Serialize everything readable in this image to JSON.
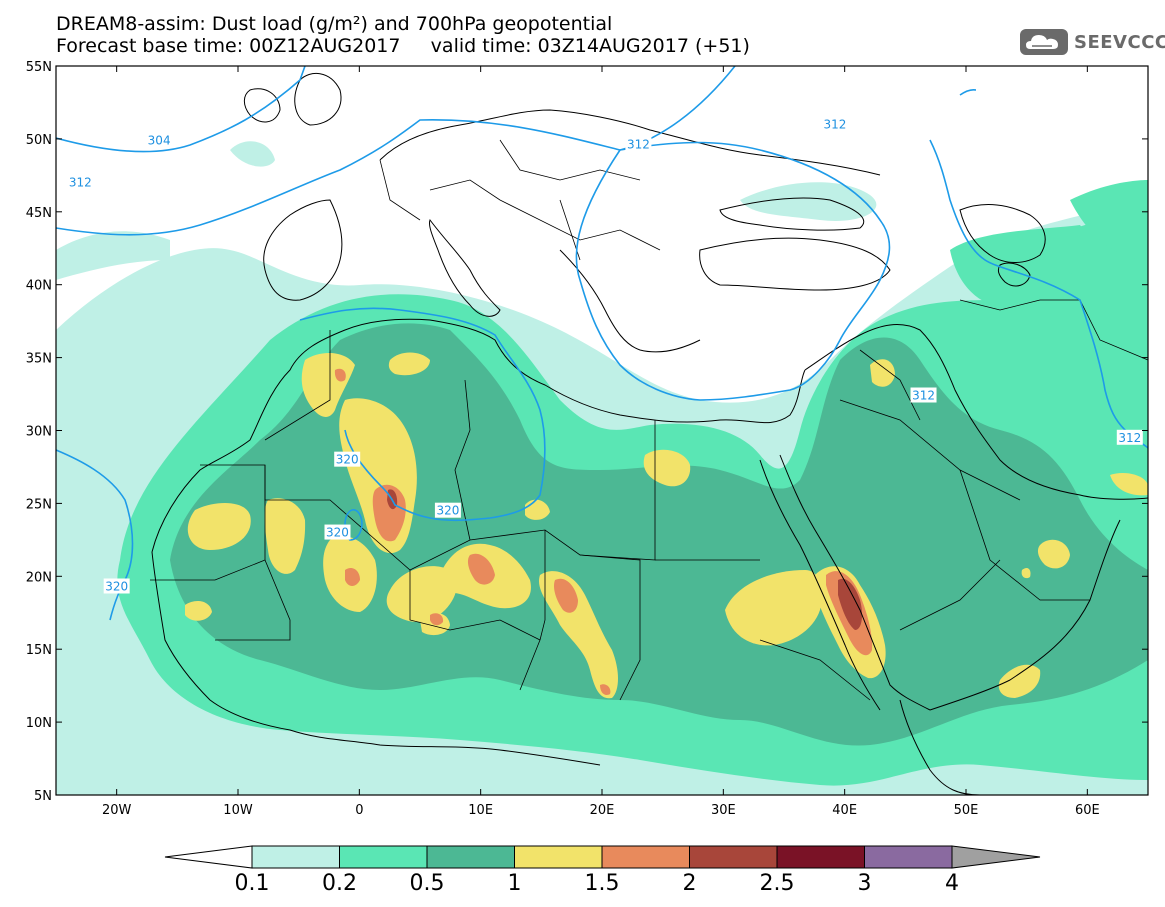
{
  "header": {
    "line1": "DREAM8-assim: Dust load (g/m²) and 700hPa geopotential",
    "line2": "Forecast base time: 00Z12AUG2017     valid time: 03Z14AUG2017 (+51)"
  },
  "logo": {
    "text": "SEEVCCC",
    "icon": "cloud-icon"
  },
  "map": {
    "lon_range": [
      -25,
      65
    ],
    "lat_range": [
      5,
      55
    ],
    "lat_ticks": [
      {
        "value": 55,
        "label": "55N"
      },
      {
        "value": 50,
        "label": "50N"
      },
      {
        "value": 45,
        "label": "45N"
      },
      {
        "value": 40,
        "label": "40N"
      },
      {
        "value": 35,
        "label": "35N"
      },
      {
        "value": 30,
        "label": "30N"
      },
      {
        "value": 25,
        "label": "25N"
      },
      {
        "value": 20,
        "label": "20N"
      },
      {
        "value": 15,
        "label": "15N"
      },
      {
        "value": 10,
        "label": "10N"
      },
      {
        "value": 5,
        "label": "5N"
      }
    ],
    "lon_ticks": [
      {
        "value": -20,
        "label": "20W"
      },
      {
        "value": -10,
        "label": "10W"
      },
      {
        "value": 0,
        "label": "0"
      },
      {
        "value": 10,
        "label": "10E"
      },
      {
        "value": 20,
        "label": "20E"
      },
      {
        "value": 30,
        "label": "30E"
      },
      {
        "value": 40,
        "label": "40E"
      },
      {
        "value": 50,
        "label": "50E"
      },
      {
        "value": 60,
        "label": "60E"
      }
    ],
    "contour_labels": [
      {
        "text": "304",
        "lon": -16.5,
        "lat": 49.9
      },
      {
        "text": "312",
        "lon": -23.0,
        "lat": 47.0
      },
      {
        "text": "312",
        "lon": 23.0,
        "lat": 49.6
      },
      {
        "text": "312",
        "lon": 39.2,
        "lat": 51.0
      },
      {
        "text": "312",
        "lon": 46.5,
        "lat": 32.4
      },
      {
        "text": "312",
        "lon": 63.5,
        "lat": 29.5
      },
      {
        "text": "320",
        "lon": -1.0,
        "lat": 28.0
      },
      {
        "text": "320",
        "lon": 7.3,
        "lat": 24.5
      },
      {
        "text": "320",
        "lon": -1.8,
        "lat": 23.0
      },
      {
        "text": "320",
        "lon": -20.0,
        "lat": 19.3
      }
    ]
  },
  "legend": {
    "colors": [
      "#bff0e6",
      "#5ae6b4",
      "#4cb894",
      "#f2e36a",
      "#e88a5c",
      "#a8463a",
      "#7a1226",
      "#8a6aa0",
      "#a0a0a0"
    ],
    "labels": [
      "0.1",
      "0.2",
      "0.5",
      "1",
      "1.5",
      "2",
      "2.5",
      "3",
      "4"
    ]
  }
}
